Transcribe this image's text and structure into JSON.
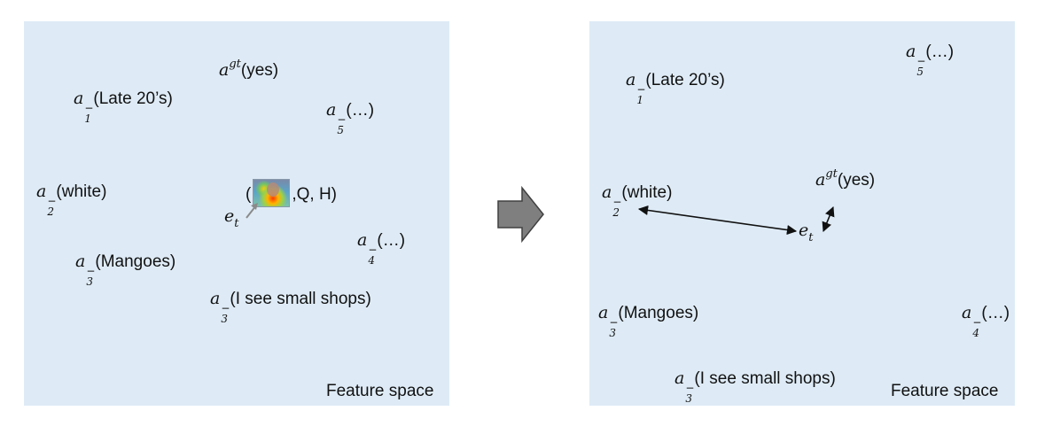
{
  "left_panel": {
    "caption": "Feature space",
    "agt": "(yes)",
    "a1": "(Late 20’s)",
    "a5": "(…)",
    "a2": "(white)",
    "a4": "(…)",
    "a3_mango": "(Mangoes)",
    "a3_shops": "(I see small shops)",
    "tuple_open": "(",
    "tuple_rest": ",Q, H)",
    "et_label": "e",
    "et_sub": "t"
  },
  "right_panel": {
    "caption": "Feature space",
    "agt": "(yes)",
    "a1": "(Late 20’s)",
    "a5": "(…)",
    "a2": "(white)",
    "a4": "(…)",
    "a3_mango": "(Mangoes)",
    "a3_shops": "(I see small shops)",
    "et_label": "e",
    "et_sub": "t"
  },
  "symbols": {
    "a": "a",
    "gt": "gt",
    "minus": "−",
    "sub1": "1",
    "sub2": "2",
    "sub3": "3",
    "sub4": "4",
    "sub5": "5"
  },
  "colors": {
    "panel_bg": "#deebf6",
    "arrow_fill": "#7f7f7f",
    "arrow_stroke": "#404040"
  }
}
